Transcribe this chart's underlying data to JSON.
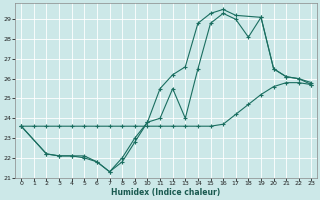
{
  "xlabel": "Humidex (Indice chaleur)",
  "bg_color": "#cce8e8",
  "grid_color": "#b0d4d4",
  "line_color": "#1a6e60",
  "xlim": [
    -0.5,
    23.4
  ],
  "ylim": [
    21.0,
    29.8
  ],
  "yticks": [
    21,
    22,
    23,
    24,
    25,
    26,
    27,
    28,
    29
  ],
  "xticks": [
    0,
    1,
    2,
    3,
    4,
    5,
    6,
    7,
    8,
    9,
    10,
    11,
    12,
    13,
    14,
    15,
    16,
    17,
    18,
    19,
    20,
    21,
    22,
    23
  ],
  "line1_x": [
    0,
    1,
    2,
    3,
    4,
    5,
    6,
    7,
    8,
    9,
    10,
    11,
    12,
    13,
    14,
    15,
    16,
    17,
    18,
    19,
    20,
    21,
    22,
    23
  ],
  "line1_y": [
    23.6,
    23.6,
    23.6,
    23.6,
    23.6,
    23.6,
    23.6,
    23.6,
    23.6,
    23.6,
    23.6,
    23.6,
    23.6,
    23.6,
    23.6,
    23.6,
    23.7,
    24.2,
    24.7,
    25.2,
    25.6,
    25.8,
    25.8,
    25.7
  ],
  "line2_x": [
    0,
    2,
    3,
    4,
    5,
    6,
    7,
    8,
    9,
    10,
    11,
    12,
    13,
    14,
    15,
    16,
    17,
    19,
    20,
    21,
    22,
    23
  ],
  "line2_y": [
    23.6,
    22.2,
    22.1,
    22.1,
    22.0,
    21.8,
    21.3,
    22.0,
    23.0,
    23.8,
    25.5,
    26.2,
    26.6,
    28.8,
    29.3,
    29.5,
    29.2,
    29.1,
    26.5,
    26.1,
    26.0,
    25.7
  ],
  "line3_x": [
    0,
    2,
    3,
    4,
    5,
    6,
    7,
    8,
    9,
    10,
    11,
    12,
    13,
    14,
    15,
    16,
    17,
    18,
    19,
    20,
    21,
    22,
    23
  ],
  "line3_y": [
    23.6,
    22.2,
    22.1,
    22.1,
    22.1,
    21.8,
    21.3,
    21.8,
    22.8,
    23.8,
    24.0,
    25.5,
    24.0,
    26.5,
    28.8,
    29.3,
    29.0,
    28.1,
    29.1,
    26.5,
    26.1,
    26.0,
    25.8
  ]
}
